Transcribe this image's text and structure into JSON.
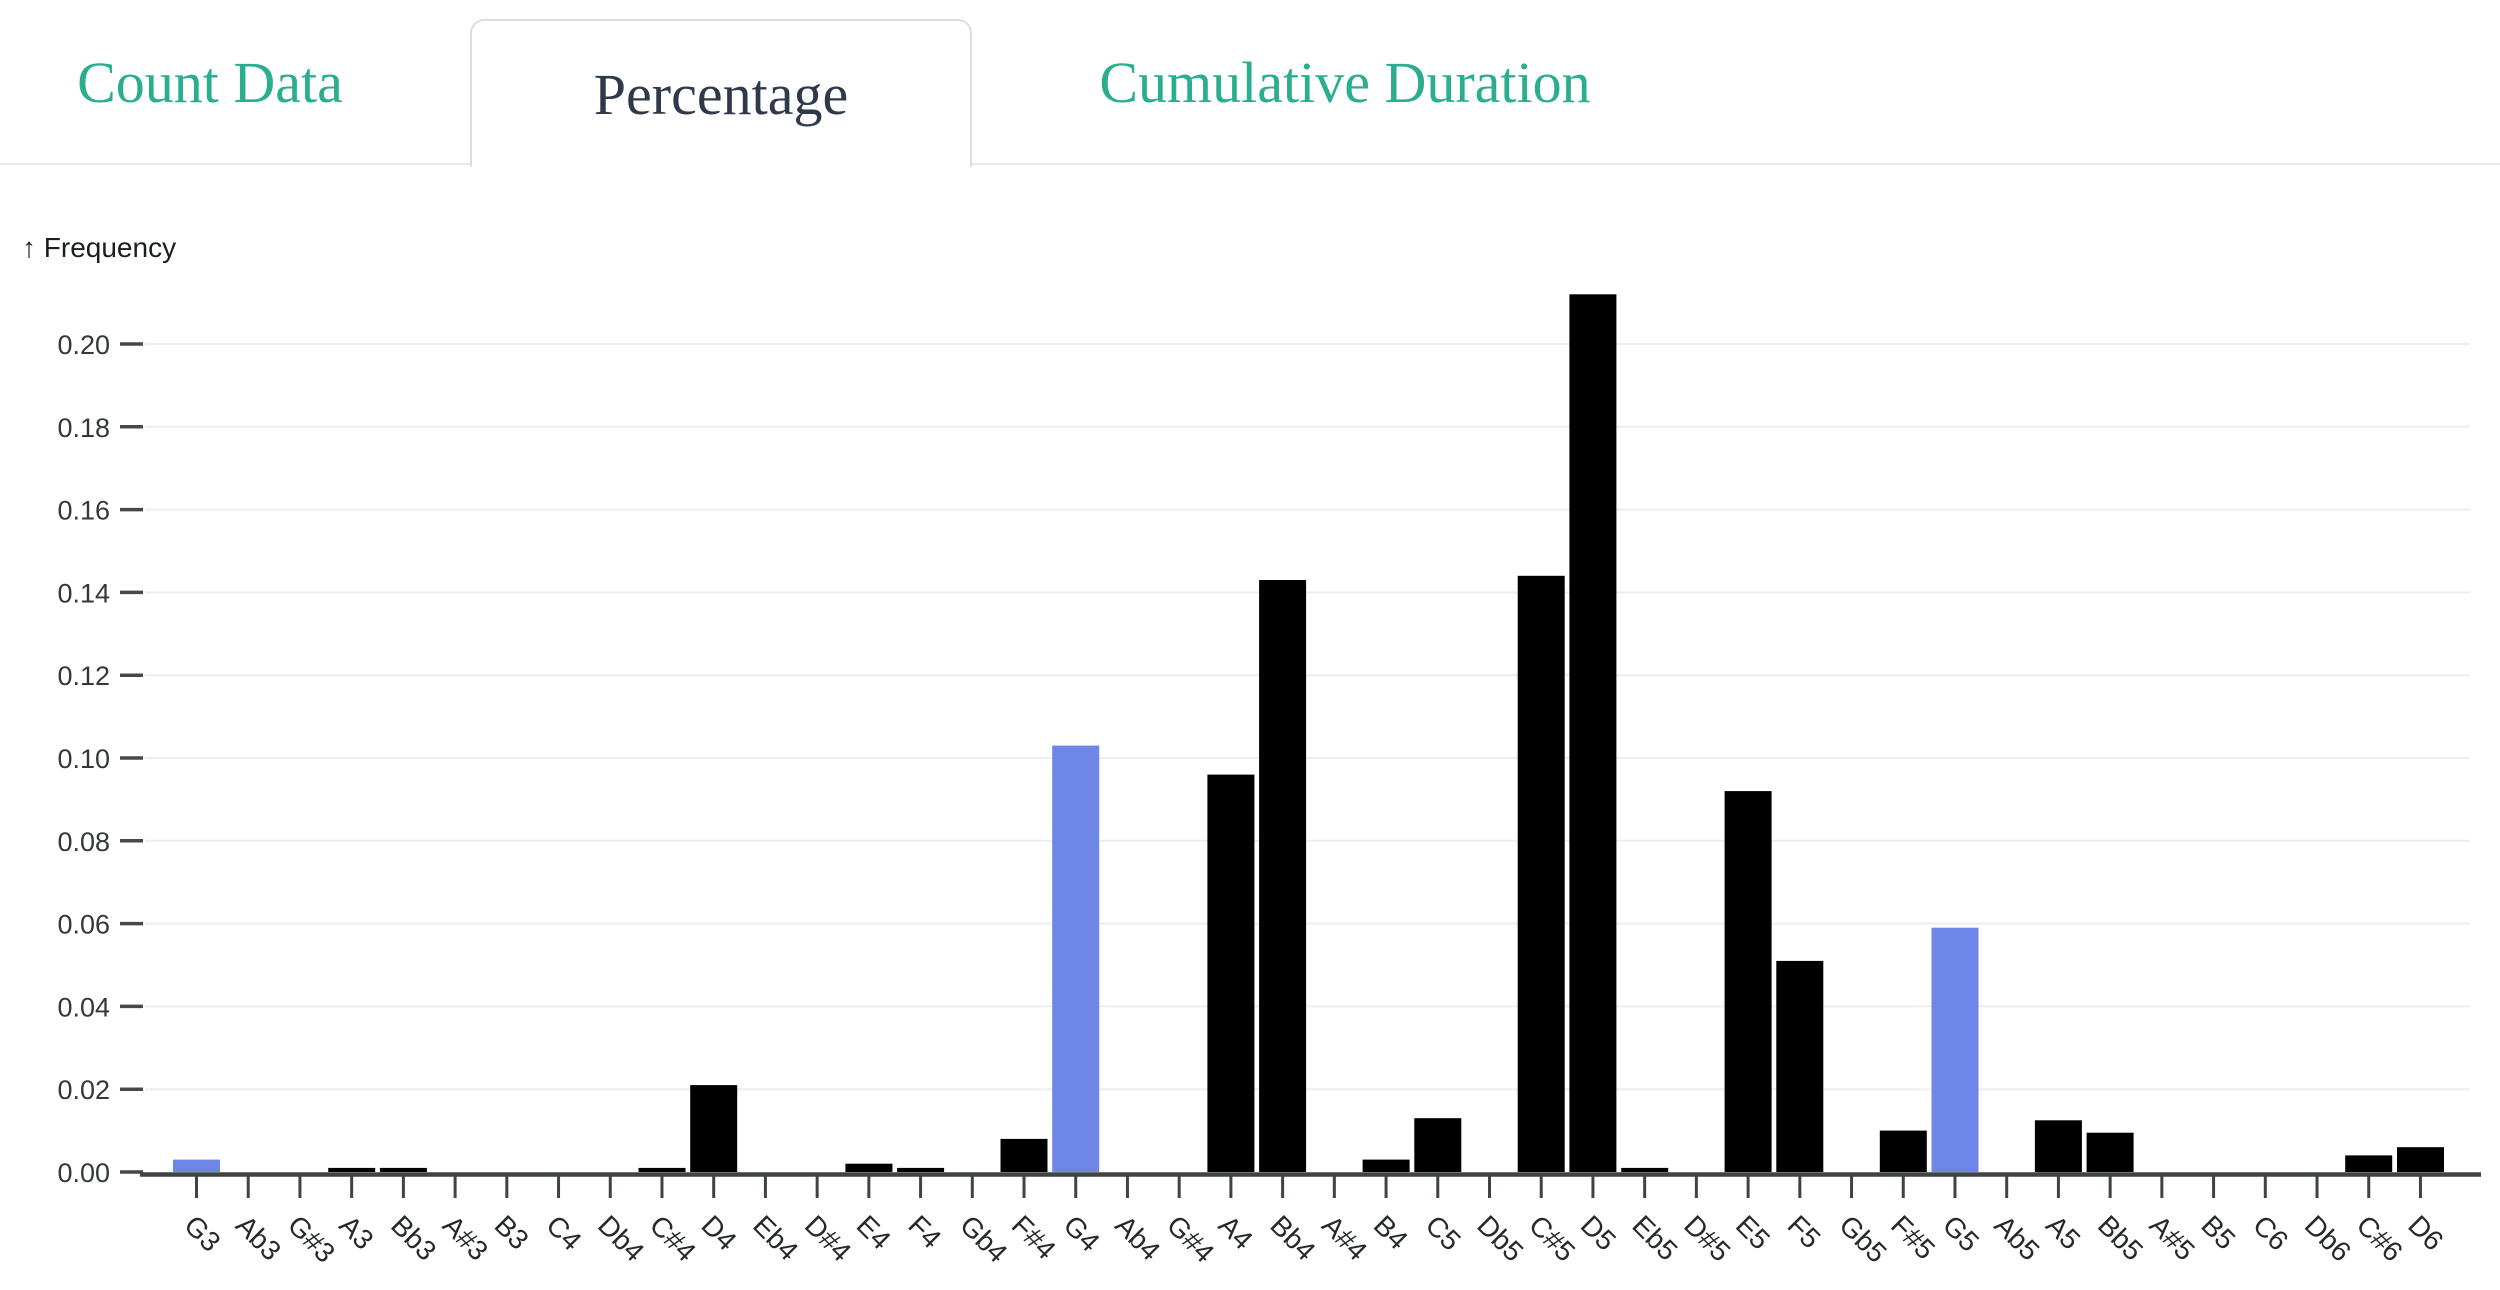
{
  "tabs": [
    {
      "label": "Count Data",
      "active": false
    },
    {
      "label": "Percentage",
      "active": true
    },
    {
      "label": "Cumulative Duration",
      "active": false
    }
  ],
  "colors": {
    "tab_inactive_text": "#2bae8f",
    "tab_active_text": "#2e3a4a",
    "tab_border": "#d9dee3",
    "divider": "#e8eaee",
    "grid": "#ededee",
    "axis": "#3e4347",
    "tick_label": "#34383c",
    "bar": "#000000",
    "bar_highlight": "#6e86e8"
  },
  "chart_data": {
    "type": "bar",
    "title": "",
    "xlabel": "",
    "ylabel": "Frequency",
    "y_axis_title": "↑ Frequency",
    "grid": true,
    "ylim": [
      0,
      0.212
    ],
    "y_ticks": [
      0,
      0.02,
      0.04,
      0.06,
      0.08,
      0.1,
      0.12,
      0.14,
      0.16,
      0.18,
      0.2
    ],
    "x_tick_rotation": 45,
    "categories": [
      "G3",
      "Ab3",
      "G#3",
      "A3",
      "Bb3",
      "A#3",
      "B3",
      "C4",
      "Db4",
      "C#4",
      "D4",
      "Eb4",
      "D#4",
      "E4",
      "F4",
      "Gb4",
      "F#4",
      "G4",
      "Ab4",
      "G#4",
      "A4",
      "Bb4",
      "A#4",
      "B4",
      "C5",
      "Db5",
      "C#5",
      "D5",
      "Eb5",
      "D#5",
      "E5",
      "F5",
      "Gb5",
      "F#5",
      "G5",
      "Ab5",
      "A5",
      "Bb5",
      "A#5",
      "B5",
      "C6",
      "Db6",
      "C#6",
      "D6"
    ],
    "values": [
      0.003,
      0,
      0,
      0.001,
      0.001,
      0,
      0,
      0,
      0,
      0.001,
      0.021,
      0,
      0,
      0.002,
      0.001,
      0,
      0.008,
      0.103,
      0,
      0,
      0.096,
      0.143,
      0,
      0.003,
      0.013,
      0,
      0.144,
      0.212,
      0.001,
      0,
      0.092,
      0.051,
      0,
      0.01,
      0.059,
      0,
      0.0125,
      0.0095,
      0,
      0,
      0,
      0,
      0.004,
      0.006
    ],
    "highlighted_categories": [
      "G3",
      "G4",
      "G5"
    ],
    "legend": null
  }
}
